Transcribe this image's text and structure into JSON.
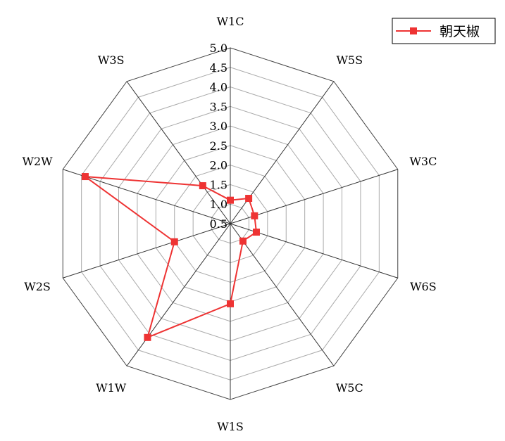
{
  "chart_data": {
    "type": "radar",
    "categories": [
      "W1C",
      "W5S",
      "W3C",
      "W6S",
      "W5C",
      "W1S",
      "W1W",
      "W2S",
      "W2W",
      "W3S"
    ],
    "series": [
      {
        "name": "朝天椒",
        "values": [
          1.1,
          1.3,
          1.15,
          1.2,
          1.05,
          2.55,
          4.1,
          2.0,
          4.4,
          1.7
        ],
        "color": "#ee3333"
      }
    ],
    "radial_range": [
      0.5,
      5.0
    ],
    "tick_labels": [
      "0.5",
      "1.0",
      "1.5",
      "2.0",
      "2.5",
      "3.0",
      "3.5",
      "4.0",
      "4.5",
      "5.0"
    ],
    "grid": true,
    "legend_position": "top-right",
    "marker": "square"
  }
}
